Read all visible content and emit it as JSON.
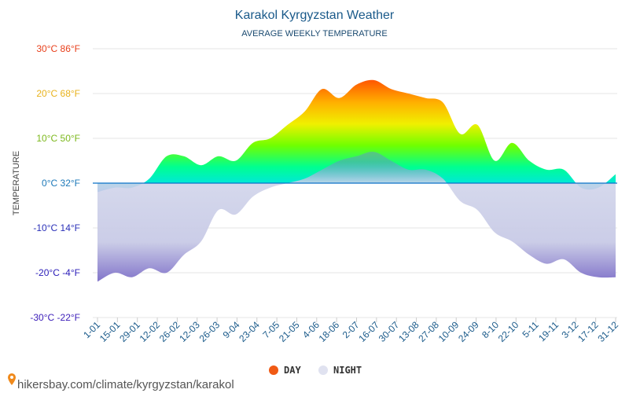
{
  "chart_data": {
    "type": "area",
    "title": "Karakol Kyrgyzstan Weather",
    "subtitle": "AVERAGE WEEKLY TEMPERATURE",
    "ylabel": "TEMPERATURE",
    "ylim": [
      -30,
      30
    ],
    "y_ticks": [
      {
        "value": 30,
        "label": "30°C 86°F",
        "color": "#e8401c"
      },
      {
        "value": 20,
        "label": "20°C 68°F",
        "color": "#e8b21c"
      },
      {
        "value": 10,
        "label": "10°C 50°F",
        "color": "#7cb81c"
      },
      {
        "value": 0,
        "label": "0°C 32°F",
        "color": "#1c78b8"
      },
      {
        "value": -10,
        "label": "-10°C 14°F",
        "color": "#2a30b8"
      },
      {
        "value": -20,
        "label": "-20°C -4°F",
        "color": "#2a1cb8"
      },
      {
        "value": -30,
        "label": "-30°C -22°F",
        "color": "#3a1cb8"
      }
    ],
    "x_labels": [
      "1-01",
      "15-01",
      "29-01",
      "12-02",
      "26-02",
      "12-03",
      "26-03",
      "9-04",
      "23-04",
      "7-05",
      "21-05",
      "4-06",
      "18-06",
      "2-07",
      "16-07",
      "30-07",
      "13-08",
      "27-08",
      "10-09",
      "24-09",
      "8-10",
      "22-10",
      "5-11",
      "19-11",
      "3-12",
      "17-12",
      "31-12"
    ],
    "grid": true,
    "legend_position": "bottom",
    "series": [
      {
        "name": "DAY",
        "color": "#f05a14",
        "values": [
          -2,
          -1,
          -1,
          1,
          6,
          6,
          4,
          6,
          5,
          9,
          10,
          13,
          16,
          21,
          19,
          22,
          23,
          21,
          20,
          19,
          18,
          11,
          13,
          5,
          9,
          5,
          3,
          3,
          -1,
          -1,
          2
        ]
      },
      {
        "name": "NIGHT",
        "color": "#e0e2f0",
        "values": [
          -22,
          -20,
          -21,
          -19,
          -20,
          -16,
          -13,
          -6,
          -7,
          -3,
          -1,
          0,
          1,
          3,
          5,
          6,
          7,
          5,
          3,
          3,
          1,
          -4,
          -6,
          -11,
          -13,
          -16,
          -18,
          -17,
          -20,
          -21,
          -21
        ]
      }
    ]
  },
  "credit": "hikersbay.com/climate/kyrgyzstan/karakol"
}
